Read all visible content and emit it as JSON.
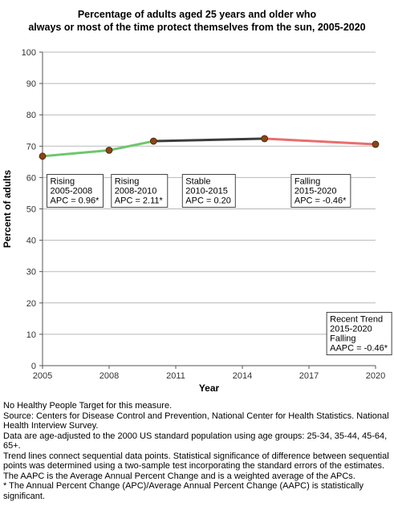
{
  "chart_data": {
    "type": "line",
    "title_lines": [
      "Percentage of adults aged 25 years and older who",
      "always or most of the time protect themselves from the sun, 2005-2020"
    ],
    "xlabel": "Year",
    "ylabel": "Percent of adults",
    "xlim": [
      2005,
      2020
    ],
    "ylim": [
      0,
      100
    ],
    "x_ticks": [
      "2005",
      "2008",
      "2011",
      "2014",
      "2017",
      "2020"
    ],
    "y_ticks": [
      "0",
      "10",
      "20",
      "30",
      "40",
      "50",
      "60",
      "70",
      "80",
      "90",
      "100"
    ],
    "grid": true,
    "points": [
      {
        "x": 2005,
        "y": 66.8
      },
      {
        "x": 2008,
        "y": 68.7
      },
      {
        "x": 2010,
        "y": 71.6
      },
      {
        "x": 2015,
        "y": 72.4
      },
      {
        "x": 2020,
        "y": 70.6
      }
    ],
    "segments": [
      {
        "from": 2005,
        "to": 2008,
        "trend": "Rising",
        "color": "#6cc76c"
      },
      {
        "from": 2008,
        "to": 2010,
        "trend": "Rising",
        "color": "#6cc76c"
      },
      {
        "from": 2010,
        "to": 2015,
        "trend": "Stable",
        "color": "#3c3c3c"
      },
      {
        "from": 2015,
        "to": 2020,
        "trend": "Falling",
        "color": "#e86e6e"
      }
    ],
    "marker_color": "#8b4513",
    "annotations": [
      {
        "lines": [
          "Rising",
          "2005-2008",
          "APC =  0.96*"
        ],
        "x": 2005.2,
        "y": 61
      },
      {
        "lines": [
          "Rising",
          "2008-2010",
          "APC =  2.11*"
        ],
        "x": 2008.1,
        "y": 61
      },
      {
        "lines": [
          "Stable",
          "2010-2015",
          "APC =  0.20"
        ],
        "x": 2011.3,
        "y": 61
      },
      {
        "lines": [
          "Falling",
          "2015-2020",
          "APC = -0.46*"
        ],
        "x": 2016.2,
        "y": 61
      },
      {
        "lines": [
          "Recent Trend",
          "2015-2020",
          "Falling",
          "AAPC = -0.46*"
        ],
        "x": 2017.8,
        "y": 17
      }
    ]
  },
  "footnotes": [
    "No Healthy People Target for this measure.",
    "Source: Centers for Disease Control and Prevention, National Center for Health Statistics. National Health Interview Survey.",
    "Data are age-adjusted to the 2000 US standard population using age groups: 25-34, 35-44, 45-64, 65+.",
    "Trend lines connect sequential data points. Statistical significance of difference between sequential points was determined using a two-sample test incorporating the standard errors of the estimates.",
    "The AAPC is the Average Annual Percent Change and is a weighted average of the APCs.",
    "* The Annual Percent Change (APC)/Average Annual Percent Change (AAPC) is statistically significant."
  ]
}
